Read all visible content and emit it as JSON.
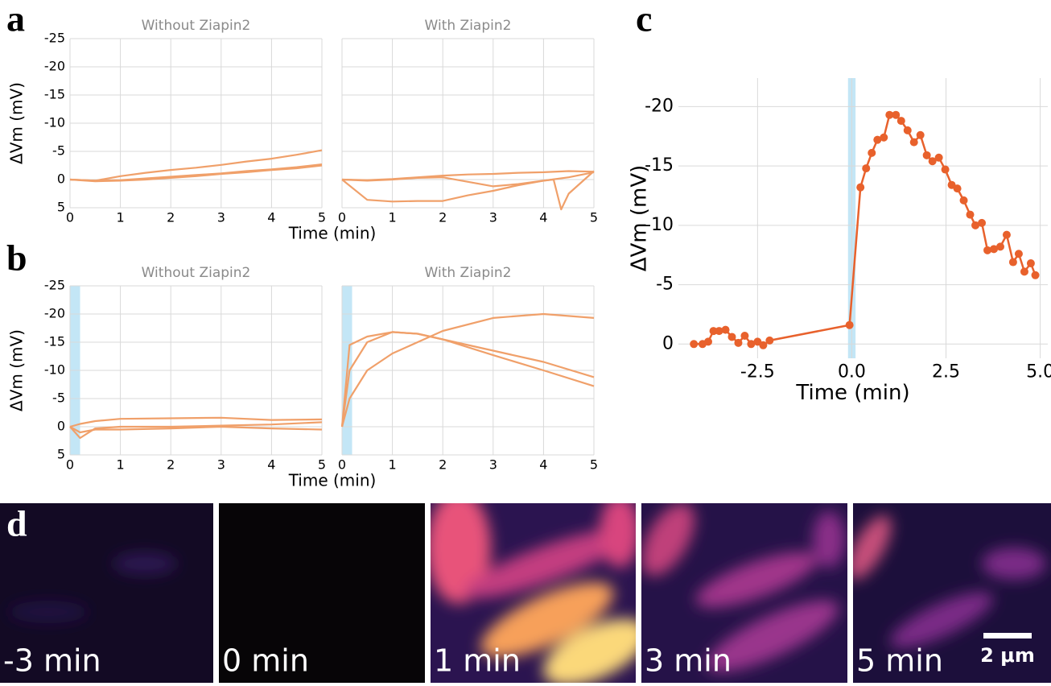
{
  "chart_data": [
    {
      "type": "line",
      "panel": "a",
      "title": "Without Ziapin2",
      "ylabel": "ΔVm (mV)",
      "xlabel": "Time (min)",
      "xlim": [
        0,
        5
      ],
      "xticks": [
        0,
        1,
        2,
        3,
        4,
        5
      ],
      "ylim": [
        5,
        -25
      ],
      "yticks": [
        -25,
        -20,
        -15,
        -10,
        -5,
        0,
        5
      ],
      "grid": true,
      "series": [
        {
          "color": "#f0a06a",
          "x": [
            0,
            0.5,
            1,
            1.5,
            2,
            2.5,
            3,
            3.5,
            4,
            4.5,
            5
          ],
          "values": [
            0,
            0.2,
            -0.6,
            -1.2,
            -1.7,
            -2.1,
            -2.6,
            -3.2,
            -3.7,
            -4.4,
            -5.2
          ]
        },
        {
          "color": "#f0a06a",
          "x": [
            0,
            0.5,
            1,
            1.5,
            2,
            2.5,
            3,
            3.5,
            4,
            4.5,
            5
          ],
          "values": [
            0,
            0.2,
            0.1,
            -0.2,
            -0.5,
            -0.8,
            -1.1,
            -1.5,
            -1.8,
            -2.2,
            -2.7
          ]
        },
        {
          "color": "#f0a06a",
          "x": [
            0,
            0.5,
            1,
            1.5,
            2,
            2.5,
            3,
            3.5,
            4,
            4.5,
            5
          ],
          "values": [
            0,
            0.3,
            0.2,
            0,
            -0.3,
            -0.6,
            -1.0,
            -1.3,
            -1.7,
            -2.0,
            -2.5
          ]
        }
      ]
    },
    {
      "type": "line",
      "title": "With Ziapin2",
      "show_ytick_labels": false,
      "xlim": [
        0,
        5
      ],
      "xticks": [
        0,
        1,
        2,
        3,
        4,
        5
      ],
      "ylim": [
        5,
        -25
      ],
      "yticks": [
        -25,
        -20,
        -15,
        -10,
        -5,
        0,
        5
      ],
      "grid": true,
      "series": [
        {
          "color": "#f0a06a",
          "x": [
            0,
            0.5,
            1,
            1.5,
            2,
            2.5,
            3,
            3.5,
            4,
            4.5,
            5
          ],
          "values": [
            0,
            0.1,
            -0.1,
            -0.4,
            -0.7,
            -0.9,
            -1.0,
            -1.2,
            -1.3,
            -1.5,
            -1.4
          ]
        },
        {
          "color": "#f0a06a",
          "x": [
            0,
            0.5,
            1,
            1.5,
            2,
            2.5,
            3,
            3.5,
            4,
            4.5,
            5
          ],
          "values": [
            0,
            0.2,
            0,
            -0.3,
            -0.4,
            0.4,
            1.2,
            0.8,
            0.2,
            -0.4,
            -1.3
          ]
        },
        {
          "color": "#f0a06a",
          "x": [
            0,
            0.5,
            1,
            1.5,
            2,
            2.5,
            3,
            3.5,
            4,
            4.2,
            4.35,
            4.5,
            5
          ],
          "values": [
            0,
            3.6,
            3.9,
            3.8,
            3.8,
            2.8,
            2.0,
            1.0,
            0.2,
            0,
            5.3,
            2.5,
            -1.5
          ]
        }
      ]
    },
    {
      "type": "line",
      "panel": "b",
      "title": "Without Ziapin2",
      "ylabel": "ΔVm (mV)",
      "xlabel": "Time (min)",
      "xlim": [
        0,
        5
      ],
      "xticks": [
        0,
        1,
        2,
        3,
        4,
        5
      ],
      "ylim": [
        5,
        -25
      ],
      "yticks": [
        -25,
        -20,
        -15,
        -10,
        -5,
        0,
        5
      ],
      "grid": true,
      "highlight": [
        0,
        0.2
      ],
      "highlight_color": "#c3e6f6",
      "series": [
        {
          "color": "#f0a06a",
          "x": [
            0,
            0.2,
            0.5,
            1,
            2,
            3,
            4,
            5
          ],
          "values": [
            0,
            -0.5,
            -1.0,
            -1.4,
            -1.5,
            -1.6,
            -1.2,
            -1.3
          ]
        },
        {
          "color": "#f0a06a",
          "x": [
            0,
            0.2,
            0.5,
            1,
            2,
            3,
            4,
            5
          ],
          "values": [
            0,
            2.0,
            0.3,
            0,
            0,
            -0.2,
            -0.4,
            -0.8
          ]
        },
        {
          "color": "#f0a06a",
          "x": [
            0,
            0.2,
            0.5,
            1,
            2,
            3,
            4,
            5
          ],
          "values": [
            0,
            1.0,
            0.5,
            0.5,
            0.3,
            0,
            0.3,
            0.5
          ]
        }
      ]
    },
    {
      "type": "line",
      "title": "With Ziapin2",
      "show_ytick_labels": false,
      "xlim": [
        0,
        5
      ],
      "xticks": [
        0,
        1,
        2,
        3,
        4,
        5
      ],
      "ylim": [
        5,
        -25
      ],
      "yticks": [
        -25,
        -20,
        -15,
        -10,
        -5,
        0,
        5
      ],
      "grid": true,
      "highlight": [
        0,
        0.2
      ],
      "highlight_color": "#c3e6f6",
      "series": [
        {
          "color": "#f0a06a",
          "x": [
            0,
            0.15,
            0.5,
            1,
            1.5,
            2,
            3,
            4,
            5
          ],
          "values": [
            0,
            -14.5,
            -16.0,
            -16.8,
            -16.5,
            -15.5,
            -13.5,
            -11.5,
            -8.8
          ]
        },
        {
          "color": "#f0a06a",
          "x": [
            0,
            0.15,
            0.5,
            1,
            1.5,
            2,
            3,
            4,
            5
          ],
          "values": [
            0,
            -10,
            -15,
            -16.8,
            -16.5,
            -15.5,
            -12.7,
            -10,
            -7.2
          ]
        },
        {
          "color": "#f0a06a",
          "x": [
            0,
            0.15,
            0.5,
            1,
            1.5,
            2,
            3,
            4,
            5
          ],
          "values": [
            0,
            -5,
            -10,
            -13,
            -15,
            -17,
            -19.3,
            -20,
            -19.3
          ]
        }
      ]
    },
    {
      "type": "line",
      "panel": "c",
      "ylabel": "ΔVm (mV)",
      "xlabel": "Time (min)",
      "markers": true,
      "xlim": [
        -4.6,
        5.2
      ],
      "xticks": [
        -2.5,
        {
          "value": 0,
          "label": "0.0"
        },
        2.5,
        {
          "value": 5,
          "label": "5.0"
        }
      ],
      "ylim": [
        1.2,
        -22.4
      ],
      "yticks": [
        -20,
        -15,
        -10,
        -5,
        0
      ],
      "grid": true,
      "highlight": [
        -0.1,
        0.1
      ],
      "highlight_color": "#c3e6f6",
      "series": [
        {
          "color": "#e8612c",
          "x": [
            -4.19,
            -3.96,
            -3.81,
            -3.67,
            -3.52,
            -3.35,
            -3.18,
            -3.01,
            -2.84,
            -2.67,
            -2.5,
            -2.35,
            -2.18,
            -0.06,
            0.23,
            0.38,
            0.53,
            0.68,
            0.85,
            1.0,
            1.17,
            1.31,
            1.48,
            1.65,
            1.82,
            1.99,
            2.14,
            2.31,
            2.48,
            2.65,
            2.8,
            2.97,
            3.14,
            3.28,
            3.45,
            3.6,
            3.77,
            3.94,
            4.11,
            4.28,
            4.43,
            4.58,
            4.75,
            4.87
          ],
          "values": [
            0,
            0,
            -0.2,
            -1.1,
            -1.1,
            -1.2,
            -0.6,
            -0.1,
            -0.7,
            0,
            -0.2,
            0.1,
            -0.3,
            -1.6,
            -13.2,
            -14.8,
            -16.1,
            -17.2,
            -17.4,
            -19.3,
            -19.3,
            -18.8,
            -18.0,
            -17.0,
            -17.6,
            -15.9,
            -15.4,
            -15.7,
            -14.7,
            -13.4,
            -13.1,
            -12.1,
            -10.9,
            -10.0,
            -10.2,
            -7.9,
            -8.0,
            -8.2,
            -9.2,
            -6.9,
            -7.6,
            -6.1,
            -6.8,
            -5.8
          ]
        }
      ]
    }
  ],
  "images": {
    "panel": "d",
    "frames": [
      "-3 min",
      "0 min",
      "1 min",
      "3 min",
      "5 min"
    ],
    "scale_bar": "2 μm"
  }
}
